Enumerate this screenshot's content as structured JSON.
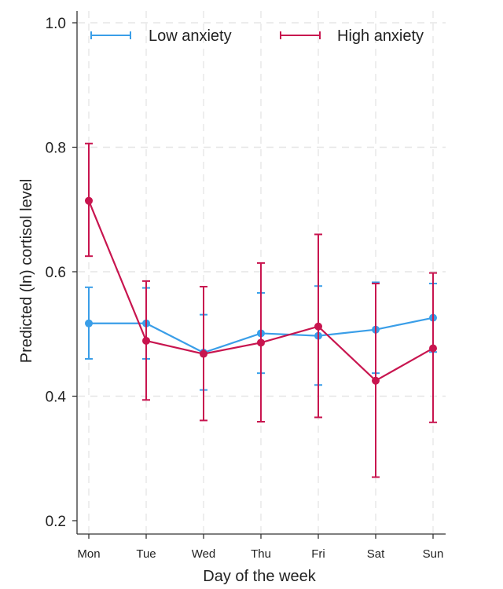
{
  "chart_data": {
    "type": "line",
    "xlabel": "Day of the week",
    "ylabel": "Predicted (ln) cortisol level",
    "categories": [
      "Mon",
      "Tue",
      "Wed",
      "Thu",
      "Fri",
      "Sat",
      "Sun"
    ],
    "ylim": [
      0.2,
      1.0
    ],
    "yticks": [
      "0.2",
      "0.4",
      "0.6",
      "0.8",
      "1.0"
    ],
    "ytick_values": [
      0.2,
      0.4,
      0.6,
      0.8,
      1.0
    ],
    "grid": true,
    "legend_position": "top",
    "series": [
      {
        "name": "Low anxiety",
        "color": "#3a9ee8",
        "values": [
          0.517,
          0.517,
          0.47,
          0.501,
          0.497,
          0.507,
          0.526
        ],
        "lower": [
          0.46,
          0.46,
          0.41,
          0.437,
          0.418,
          0.437,
          0.471
        ],
        "upper": [
          0.575,
          0.574,
          0.531,
          0.566,
          0.577,
          0.583,
          0.581
        ]
      },
      {
        "name": "High anxiety",
        "color": "#c8154f",
        "values": [
          0.714,
          0.489,
          0.468,
          0.486,
          0.512,
          0.425,
          0.477
        ],
        "lower": [
          0.625,
          0.394,
          0.361,
          0.359,
          0.366,
          0.27,
          0.358
        ],
        "upper": [
          0.806,
          0.585,
          0.576,
          0.614,
          0.66,
          0.581,
          0.598
        ]
      }
    ]
  }
}
